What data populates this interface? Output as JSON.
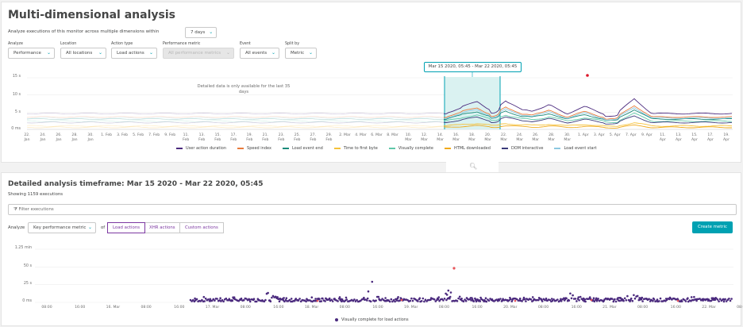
{
  "header": {
    "title": "Multi-dimensional analysis"
  },
  "within": {
    "text": "Analyze executions of this monitor across multiple dimensions within",
    "value": "7 days"
  },
  "filters": [
    {
      "label": "Analyze",
      "value": "Performance",
      "disabled": false
    },
    {
      "label": "Location",
      "value": "All locations",
      "disabled": false
    },
    {
      "label": "Action type",
      "value": "Load actions",
      "disabled": false
    },
    {
      "label": "Performance metric",
      "value": "All performance metrics",
      "disabled": true
    },
    {
      "label": "Event",
      "value": "All events",
      "disabled": false
    },
    {
      "label": "Split by",
      "value": "Metric",
      "disabled": false
    }
  ],
  "overview_chart": {
    "y_ticks": [
      "15 s",
      "10 s",
      "5 s",
      "0 ms"
    ],
    "x_ticks": [
      "22.\nJan",
      "24.\nJan",
      "26.\nJan",
      "28.\nJan",
      "30.\nJan",
      "1. Feb",
      "3. Feb",
      "5. Feb",
      "7. Feb",
      "9. Feb",
      "11.\nFeb",
      "13.\nFeb",
      "15.\nFeb",
      "17.\nFeb",
      "19.\nFeb",
      "21.\nFeb",
      "23.\nFeb",
      "25.\nFeb",
      "27.\nFeb",
      "29.\nFeb",
      "2. Mar",
      "4. Mar",
      "6. Mar",
      "8. Mar",
      "10.\nMar",
      "12.\nMar",
      "14.\nMar",
      "16.\nMar",
      "18.\nMar",
      "20.\nMar",
      "22.\nMar",
      "24.\nMar",
      "26.\nMar",
      "28.\nMar",
      "30.\nMar",
      "1. Apr",
      "3. Apr",
      "5. Apr",
      "7. Apr",
      "9. Apr",
      "11.\nApr",
      "13.\nApr",
      "15.\nApr",
      "17.\nApr",
      "19.\nApr"
    ],
    "selection_label": "Mar 15 2020, 05:45 - Mar 22 2020, 05:45",
    "availability_note": "Detailed data is only available for the last 35 days",
    "legend": [
      {
        "name": "User action duration",
        "color": "#4b2a7e"
      },
      {
        "name": "Speed index",
        "color": "#e87b3c"
      },
      {
        "name": "Load event end",
        "color": "#1a8a7a"
      },
      {
        "name": "Time to first byte",
        "color": "#f5c23a"
      },
      {
        "name": "Visually complete",
        "color": "#5fc7a8"
      },
      {
        "name": "HTML downloaded",
        "color": "#f0a91a"
      },
      {
        "name": "DOM interactive",
        "color": "#3a3a7a"
      },
      {
        "name": "Load event start",
        "color": "#8cc8e0"
      }
    ],
    "selection_color": "#00a1b2",
    "alert_color": "#dc172a"
  },
  "details": {
    "title": "Detailed analysis timeframe: Mar 15 2020 - Mar 22 2020, 05:45",
    "showing": "Showing 1159 executions",
    "filter_placeholder": "Filter executions",
    "analyze_label": "Analyze",
    "metric_value": "Key performance metric",
    "of_label": "of",
    "segments": [
      "Load actions",
      "XHR actions",
      "Custom actions"
    ],
    "create_button": "Create metric",
    "y_ticks": [
      "1.25 min",
      "50 s",
      "25 s",
      "0 ms"
    ],
    "x_ticks": [
      "08:00",
      "16:00",
      "16. Mar",
      "08:00",
      "16:00",
      "17. Mar",
      "08:00",
      "16:00",
      "18. Mar",
      "08:00",
      "16:00",
      "19. Mar",
      "08:00",
      "16:00",
      "20. Mar",
      "08:00",
      "16:00",
      "21. Mar",
      "08:00",
      "16:00",
      "22. Mar",
      "08:00"
    ],
    "legend_label": "Visually complete for load actions"
  }
}
